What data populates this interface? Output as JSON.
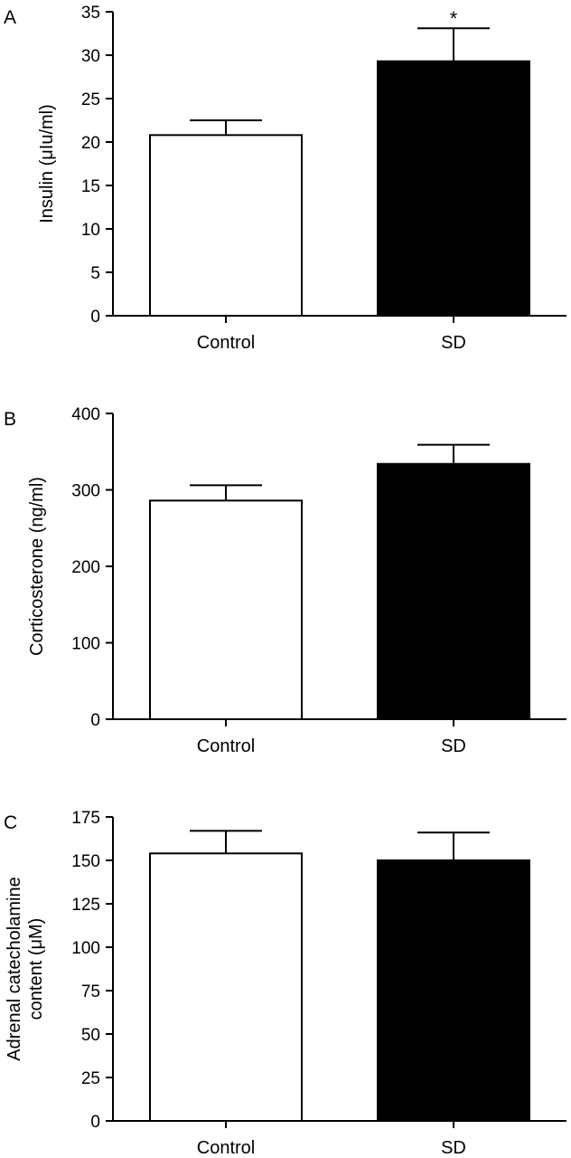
{
  "chart_data": [
    {
      "type": "bar",
      "panel_label": "A",
      "categories": [
        "Control",
        "SD"
      ],
      "values": [
        20.8,
        29.3
      ],
      "errors": [
        1.7,
        3.8
      ],
      "bar_colors": [
        "#ffffff",
        "#000000"
      ],
      "annotations": [
        "",
        "*"
      ],
      "ylabel": "Insulin (μIu/ml)",
      "ylim": [
        0,
        35
      ],
      "yticks": [
        0,
        5,
        10,
        15,
        20,
        25,
        30,
        35
      ],
      "title": "",
      "xlabel": ""
    },
    {
      "type": "bar",
      "panel_label": "B",
      "categories": [
        "Control",
        "SD"
      ],
      "values": [
        286,
        334
      ],
      "errors": [
        20,
        25
      ],
      "bar_colors": [
        "#ffffff",
        "#000000"
      ],
      "annotations": [
        "",
        ""
      ],
      "ylabel": "Corticosterone (ng/ml)",
      "ylim": [
        0,
        400
      ],
      "yticks": [
        0,
        100,
        200,
        300,
        400
      ],
      "title": "",
      "xlabel": ""
    },
    {
      "type": "bar",
      "panel_label": "C",
      "categories": [
        "Control",
        "SD"
      ],
      "values": [
        154,
        150
      ],
      "errors": [
        13,
        16
      ],
      "bar_colors": [
        "#ffffff",
        "#000000"
      ],
      "annotations": [
        "",
        ""
      ],
      "ylabel": [
        "Adrenal catecholamine",
        "content (μM)"
      ],
      "ylim": [
        0,
        175
      ],
      "yticks": [
        0,
        25,
        50,
        75,
        100,
        125,
        150,
        175
      ],
      "title": "",
      "xlabel": ""
    }
  ]
}
